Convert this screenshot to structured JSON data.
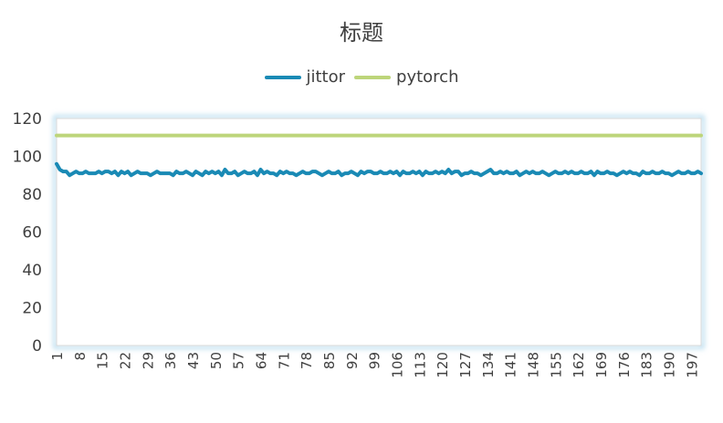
{
  "chart_data": {
    "type": "line",
    "title": "标题",
    "xlabel": "",
    "ylabel": "",
    "ylim": [
      0,
      120
    ],
    "yticks": [
      0,
      20,
      40,
      60,
      80,
      100,
      120
    ],
    "xlim": [
      1,
      200
    ],
    "xticks": [
      1,
      8,
      15,
      22,
      29,
      36,
      43,
      50,
      57,
      64,
      71,
      78,
      85,
      92,
      99,
      106,
      113,
      120,
      127,
      134,
      141,
      148,
      155,
      162,
      169,
      176,
      183,
      190,
      197
    ],
    "legend_position": "top-center",
    "grid": false,
    "series": [
      {
        "name": "jittor",
        "color": "#1a8ab5",
        "x_start": 1,
        "values": [
          96,
          93,
          92,
          92,
          90,
          91,
          92,
          91,
          91,
          92,
          91,
          91,
          91,
          92,
          91,
          92,
          92,
          91,
          92,
          90,
          92,
          91,
          92,
          90,
          91,
          92,
          91,
          91,
          91,
          90,
          91,
          92,
          91,
          91,
          91,
          91,
          90,
          92,
          91,
          91,
          92,
          91,
          90,
          92,
          91,
          90,
          92,
          91,
          92,
          91,
          92,
          90,
          93,
          91,
          91,
          92,
          90,
          91,
          92,
          91,
          91,
          92,
          90,
          93,
          91,
          92,
          91,
          91,
          90,
          92,
          91,
          92,
          91,
          91,
          90,
          91,
          92,
          91,
          91,
          92,
          92,
          91,
          90,
          91,
          92,
          91,
          91,
          92,
          90,
          91,
          91,
          92,
          91,
          90,
          92,
          91,
          92,
          92,
          91,
          91,
          92,
          91,
          91,
          92,
          91,
          92,
          90,
          92,
          91,
          91,
          92,
          91,
          92,
          90,
          92,
          91,
          91,
          92,
          91,
          92,
          91,
          93,
          91,
          92,
          92,
          90,
          91,
          91,
          92,
          91,
          91,
          90,
          91,
          92,
          93,
          91,
          91,
          92,
          91,
          92,
          91,
          91,
          92,
          90,
          91,
          92,
          91,
          92,
          91,
          91,
          92,
          91,
          90,
          91,
          92,
          91,
          91,
          92,
          91,
          92,
          91,
          91,
          92,
          91,
          91,
          92,
          90,
          92,
          91,
          91,
          92,
          91,
          91,
          90,
          91,
          92,
          91,
          92,
          91,
          91,
          90,
          92,
          91,
          91,
          92,
          91,
          91,
          92,
          91,
          91,
          90,
          91,
          92,
          91,
          91,
          92,
          91,
          91,
          92,
          91
        ]
      },
      {
        "name": "pytorch",
        "color": "#bdd57a",
        "x_start": 1,
        "value_constant": 111,
        "count": 200
      }
    ]
  }
}
